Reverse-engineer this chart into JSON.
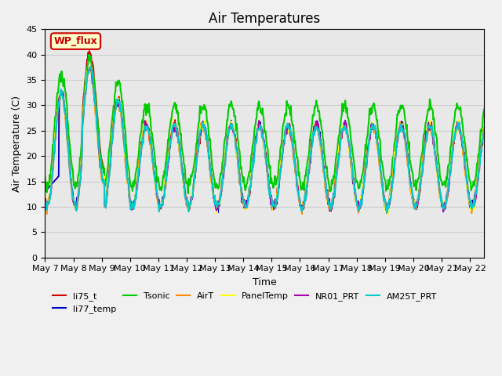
{
  "title": "Air Temperatures",
  "ylabel": "Air Temperature (C)",
  "xlabel": "Time",
  "ylim": [
    0,
    45
  ],
  "xlim_days": [
    0,
    15.5
  ],
  "x_start_label": "May 7",
  "background_color": "#e8e8e8",
  "plot_bg": "#e8e8e8",
  "series": {
    "li75_t": {
      "color": "#cc0000",
      "lw": 1.2
    },
    "li77_temp": {
      "color": "#0000cc",
      "lw": 1.2
    },
    "Tsonic": {
      "color": "#00cc00",
      "lw": 1.5
    },
    "AirT": {
      "color": "#ff8800",
      "lw": 1.2
    },
    "PanelTemp": {
      "color": "#ffff00",
      "lw": 1.2
    },
    "NR01_PRT": {
      "color": "#aa00aa",
      "lw": 1.2
    },
    "AM25T_PRT": {
      "color": "#00cccc",
      "lw": 1.5
    }
  },
  "legend_label": "WP_flux",
  "legend_box_color": "#ffffcc",
  "legend_text_color": "#cc0000",
  "legend_border_color": "#cc0000",
  "yticks": [
    0,
    5,
    10,
    15,
    20,
    25,
    30,
    35,
    40,
    45
  ],
  "xtick_labels": [
    "May 7",
    "May 8",
    "May 9",
    "May 10",
    "May 11",
    "May 12",
    "May 13",
    "May 14",
    "May 15",
    "May 16",
    "May 17",
    "May 18",
    "May 19",
    "May 20",
    "May 21",
    "May 22"
  ],
  "grid_color": "#cccccc",
  "fontsize_ticks": 8,
  "fontsize_title": 12,
  "fontsize_axis": 9,
  "fontsize_legend": 8
}
